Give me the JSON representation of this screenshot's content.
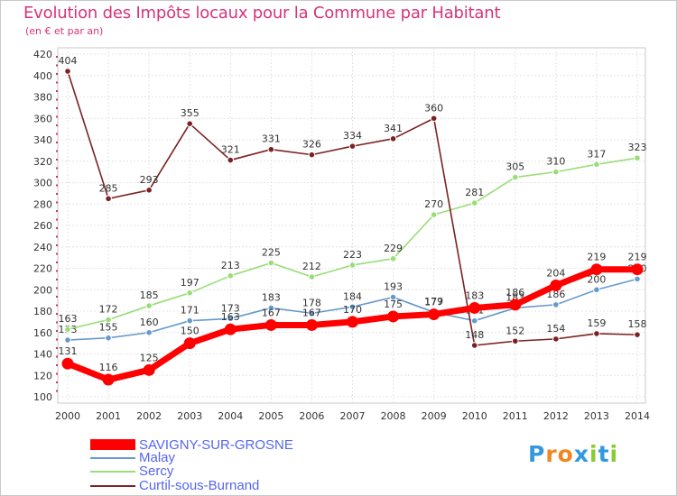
{
  "chart_data": {
    "type": "line",
    "title": "Evolution des Impôts locaux pour la Commune par Habitant",
    "subtitle": "(en € et par an)",
    "xlabel": "",
    "ylabel": "",
    "x": [
      2000,
      2001,
      2002,
      2003,
      2004,
      2005,
      2006,
      2007,
      2008,
      2009,
      2010,
      2011,
      2012,
      2013,
      2014
    ],
    "ylim": [
      100,
      420
    ],
    "ytick_step": 20,
    "grid": true,
    "legend_position": "bottom-left",
    "series": [
      {
        "name": "SAVIGNY-SUR-GROSNE",
        "color": "#ff0000",
        "style": "thick",
        "values": [
          131,
          116,
          125,
          150,
          163,
          167,
          167,
          170,
          175,
          177,
          183,
          186,
          204,
          219,
          219
        ]
      },
      {
        "name": "Malay",
        "color": "#6699cc",
        "style": "thin",
        "values": [
          153,
          155,
          160,
          171,
          173,
          183,
          178,
          184,
          193,
          179,
          171,
          183,
          186,
          200,
          210
        ]
      },
      {
        "name": "Sercy",
        "color": "#99dd77",
        "style": "thin",
        "values": [
          163,
          172,
          185,
          197,
          213,
          225,
          212,
          223,
          229,
          270,
          281,
          305,
          310,
          317,
          323
        ]
      },
      {
        "name": "Curtil-sous-Burnand",
        "color": "#7a2222",
        "style": "thin",
        "values": [
          404,
          285,
          293,
          355,
          321,
          331,
          326,
          334,
          341,
          360,
          148,
          152,
          154,
          159,
          158
        ]
      }
    ]
  },
  "logo": {
    "text": "Proxiti",
    "letters": [
      "P",
      "r",
      "o",
      "x",
      "i",
      "t",
      "i"
    ],
    "colors": [
      "#3399dd",
      "#ee8822",
      "#ee8822",
      "#3399dd",
      "#88cc33",
      "#3399dd",
      "#88cc33"
    ]
  }
}
